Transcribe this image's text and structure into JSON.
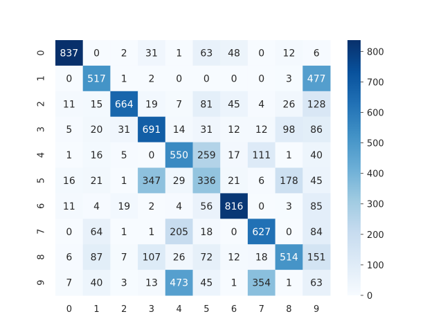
{
  "chart_data": {
    "type": "heatmap",
    "title": "",
    "xlabel": "",
    "ylabel": "",
    "x_categories": [
      "0",
      "1",
      "2",
      "3",
      "4",
      "5",
      "6",
      "7",
      "8",
      "9"
    ],
    "y_categories": [
      "0",
      "1",
      "2",
      "3",
      "4",
      "5",
      "6",
      "7",
      "8",
      "9"
    ],
    "values": [
      [
        837,
        0,
        2,
        31,
        1,
        63,
        48,
        0,
        12,
        6
      ],
      [
        0,
        517,
        1,
        2,
        0,
        0,
        0,
        0,
        3,
        477
      ],
      [
        11,
        15,
        664,
        19,
        7,
        81,
        45,
        4,
        26,
        128
      ],
      [
        5,
        20,
        31,
        691,
        14,
        31,
        12,
        12,
        98,
        86
      ],
      [
        1,
        16,
        5,
        0,
        550,
        259,
        17,
        111,
        1,
        40
      ],
      [
        16,
        21,
        1,
        347,
        29,
        336,
        21,
        6,
        178,
        45
      ],
      [
        11,
        4,
        19,
        2,
        4,
        56,
        816,
        0,
        3,
        85
      ],
      [
        0,
        64,
        1,
        1,
        205,
        18,
        0,
        627,
        0,
        84
      ],
      [
        6,
        87,
        7,
        107,
        26,
        72,
        12,
        18,
        514,
        151
      ],
      [
        7,
        40,
        3,
        13,
        473,
        45,
        1,
        354,
        1,
        63
      ]
    ],
    "value_range": [
      0,
      837
    ],
    "colormap": "Blues",
    "colorbar_ticks": [
      0,
      100,
      200,
      300,
      400,
      500,
      600,
      700,
      800
    ],
    "colorbar_tick_labels": [
      "0",
      "100",
      "200",
      "300",
      "400",
      "500",
      "600",
      "700",
      "800"
    ],
    "grid": false,
    "annotations": true
  }
}
